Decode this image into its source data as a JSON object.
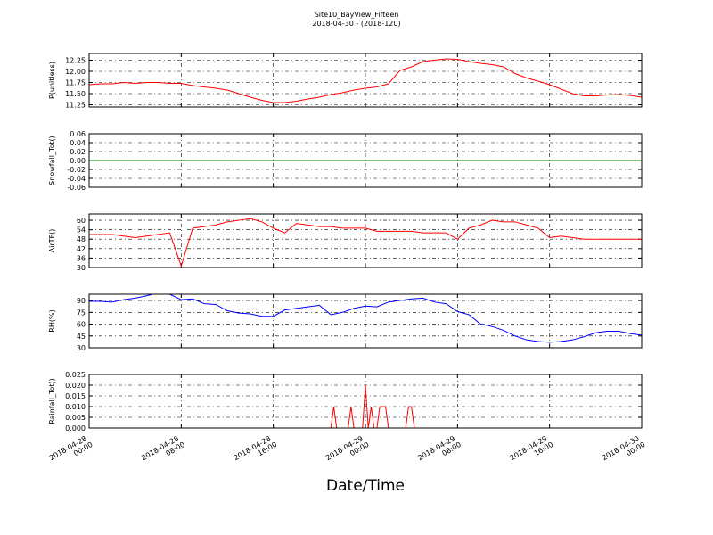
{
  "chart_data": [
    {
      "type": "line",
      "title": "Site10_BayView_Fifteen",
      "subtitle": "2018-04-30 - (2018-120)",
      "ylabel": "P(unitless)",
      "color": "#ff0000",
      "x": [
        "2018-04-28 00:00",
        "2018-04-28 01:00",
        "2018-04-28 02:00",
        "2018-04-28 03:00",
        "2018-04-28 04:00",
        "2018-04-28 05:00",
        "2018-04-28 06:00",
        "2018-04-28 07:00",
        "2018-04-28 08:00",
        "2018-04-28 09:00",
        "2018-04-28 10:00",
        "2018-04-28 11:00",
        "2018-04-28 12:00",
        "2018-04-28 13:00",
        "2018-04-28 14:00",
        "2018-04-28 15:00",
        "2018-04-28 16:00",
        "2018-04-28 17:00",
        "2018-04-28 18:00",
        "2018-04-28 19:00",
        "2018-04-28 20:00",
        "2018-04-28 21:00",
        "2018-04-28 22:00",
        "2018-04-28 23:00",
        "2018-04-29 00:00",
        "2018-04-29 01:00",
        "2018-04-29 02:00",
        "2018-04-29 03:00",
        "2018-04-29 04:00",
        "2018-04-29 05:00",
        "2018-04-29 06:00",
        "2018-04-29 07:00",
        "2018-04-29 08:00",
        "2018-04-29 09:00",
        "2018-04-29 10:00",
        "2018-04-29 11:00",
        "2018-04-29 12:00",
        "2018-04-29 13:00",
        "2018-04-29 14:00",
        "2018-04-29 15:00",
        "2018-04-29 16:00",
        "2018-04-29 17:00",
        "2018-04-29 18:00",
        "2018-04-29 19:00",
        "2018-04-29 20:00",
        "2018-04-29 21:00",
        "2018-04-29 22:00",
        "2018-04-29 23:00",
        "2018-04-30 00:00"
      ],
      "values": [
        11.7,
        11.72,
        11.72,
        11.75,
        11.73,
        11.75,
        11.75,
        11.73,
        11.73,
        11.68,
        11.65,
        11.62,
        11.58,
        11.5,
        11.42,
        11.35,
        11.3,
        11.3,
        11.33,
        11.38,
        11.42,
        11.48,
        11.52,
        11.58,
        11.62,
        11.65,
        11.72,
        12.02,
        12.1,
        12.22,
        12.25,
        12.28,
        12.27,
        12.22,
        12.18,
        12.15,
        12.1,
        11.95,
        11.85,
        11.78,
        11.7,
        11.6,
        11.5,
        11.45,
        11.45,
        11.47,
        11.48,
        11.46,
        11.42
      ],
      "xlim": [
        "2018-04-28 00:00",
        "2018-04-30 00:00"
      ],
      "xticks": [
        "2018-04-28 00:00",
        "2018-04-28 08:00",
        "2018-04-28 16:00",
        "2018-04-29 00:00",
        "2018-04-29 08:00",
        "2018-04-29 16:00",
        "2018-04-30 00:00"
      ],
      "ylim": [
        11.2,
        12.4
      ],
      "yticks": [
        11.25,
        {
          "value": 11.5,
          "label": "11.50"
        },
        11.75,
        {
          "value": 12,
          "label": "12.00"
        },
        12.25
      ],
      "grid": true
    },
    {
      "type": "line",
      "ylabel": "Snowfall_Tot()",
      "color": "#008000",
      "x": [
        "2018-04-28 00:00",
        "2018-04-28 01:00",
        "2018-04-28 02:00",
        "2018-04-28 03:00",
        "2018-04-28 04:00",
        "2018-04-28 05:00",
        "2018-04-28 06:00",
        "2018-04-28 07:00",
        "2018-04-28 08:00",
        "2018-04-28 09:00",
        "2018-04-28 10:00",
        "2018-04-28 11:00",
        "2018-04-28 12:00",
        "2018-04-28 13:00",
        "2018-04-28 14:00",
        "2018-04-28 15:00",
        "2018-04-28 16:00",
        "2018-04-28 17:00",
        "2018-04-28 18:00",
        "2018-04-28 19:00",
        "2018-04-28 20:00",
        "2018-04-28 21:00",
        "2018-04-28 22:00",
        "2018-04-28 23:00",
        "2018-04-29 00:00",
        "2018-04-29 01:00",
        "2018-04-29 02:00",
        "2018-04-29 03:00",
        "2018-04-29 04:00",
        "2018-04-29 05:00",
        "2018-04-29 06:00",
        "2018-04-29 07:00",
        "2018-04-29 08:00",
        "2018-04-29 09:00",
        "2018-04-29 10:00",
        "2018-04-29 11:00",
        "2018-04-29 12:00",
        "2018-04-29 13:00",
        "2018-04-29 14:00",
        "2018-04-29 15:00",
        "2018-04-29 16:00",
        "2018-04-29 17:00",
        "2018-04-29 18:00",
        "2018-04-29 19:00",
        "2018-04-29 20:00",
        "2018-04-29 21:00",
        "2018-04-29 22:00",
        "2018-04-29 23:00",
        "2018-04-30 00:00"
      ],
      "values": [
        0,
        0,
        0,
        0,
        0,
        0,
        0,
        0,
        0,
        0,
        0,
        0,
        0,
        0,
        0,
        0,
        0,
        0,
        0,
        0,
        0,
        0,
        0,
        0,
        0,
        0,
        0,
        0,
        0,
        0,
        0,
        0,
        0,
        0,
        0,
        0,
        0,
        0,
        0,
        0,
        0,
        0,
        0,
        0,
        0,
        0,
        0,
        0,
        0
      ],
      "xlim": [
        "2018-04-28 00:00",
        "2018-04-30 00:00"
      ],
      "xticks": [
        "2018-04-28 00:00",
        "2018-04-28 08:00",
        "2018-04-28 16:00",
        "2018-04-29 00:00",
        "2018-04-29 08:00",
        "2018-04-29 16:00",
        "2018-04-30 00:00"
      ],
      "ylim": [
        -0.06,
        0.06
      ],
      "yticks": [
        -0.06,
        -0.04,
        -0.02,
        {
          "value": 0,
          "label": "0.00"
        },
        0.02,
        0.04,
        0.06
      ],
      "grid": true
    },
    {
      "type": "line",
      "ylabel": "AirTF()",
      "color": "#ff0000",
      "x": [
        "2018-04-28 00:00",
        "2018-04-28 01:00",
        "2018-04-28 02:00",
        "2018-04-28 03:00",
        "2018-04-28 04:00",
        "2018-04-28 05:00",
        "2018-04-28 06:00",
        "2018-04-28 07:00",
        "2018-04-28 08:00",
        "2018-04-28 09:00",
        "2018-04-28 10:00",
        "2018-04-28 11:00",
        "2018-04-28 12:00",
        "2018-04-28 13:00",
        "2018-04-28 14:00",
        "2018-04-28 15:00",
        "2018-04-28 16:00",
        "2018-04-28 17:00",
        "2018-04-28 18:00",
        "2018-04-28 19:00",
        "2018-04-28 20:00",
        "2018-04-28 21:00",
        "2018-04-28 22:00",
        "2018-04-28 23:00",
        "2018-04-29 00:00",
        "2018-04-29 01:00",
        "2018-04-29 02:00",
        "2018-04-29 03:00",
        "2018-04-29 04:00",
        "2018-04-29 05:00",
        "2018-04-29 06:00",
        "2018-04-29 07:00",
        "2018-04-29 08:00",
        "2018-04-29 09:00",
        "2018-04-29 10:00",
        "2018-04-29 11:00",
        "2018-04-29 12:00",
        "2018-04-29 13:00",
        "2018-04-29 14:00",
        "2018-04-29 15:00",
        "2018-04-29 16:00",
        "2018-04-29 17:00",
        "2018-04-29 18:00",
        "2018-04-29 19:00",
        "2018-04-29 20:00",
        "2018-04-29 21:00",
        "2018-04-29 22:00",
        "2018-04-29 23:00",
        "2018-04-30 00:00"
      ],
      "values": [
        51,
        51,
        51,
        50,
        49,
        50,
        51,
        52,
        31,
        55,
        56,
        57,
        59,
        60,
        61,
        59,
        55,
        52,
        58,
        57,
        56,
        56,
        55,
        55,
        55,
        53,
        53,
        53,
        53,
        52,
        52,
        52,
        48,
        55,
        57,
        60,
        59,
        59,
        57,
        55,
        49,
        50,
        49,
        48,
        48,
        48,
        48,
        48,
        48
      ],
      "xlim": [
        "2018-04-28 00:00",
        "2018-04-30 00:00"
      ],
      "xticks": [
        "2018-04-28 00:00",
        "2018-04-28 08:00",
        "2018-04-28 16:00",
        "2018-04-29 00:00",
        "2018-04-29 08:00",
        "2018-04-29 16:00",
        "2018-04-30 00:00"
      ],
      "ylim": [
        30,
        64
      ],
      "yticks": [
        30,
        36,
        42,
        48,
        54,
        60
      ],
      "grid": true
    },
    {
      "type": "line",
      "ylabel": "RH(%)",
      "color": "#0000ff",
      "x": [
        "2018-04-28 00:00",
        "2018-04-28 01:00",
        "2018-04-28 02:00",
        "2018-04-28 03:00",
        "2018-04-28 04:00",
        "2018-04-28 05:00",
        "2018-04-28 06:00",
        "2018-04-28 07:00",
        "2018-04-28 08:00",
        "2018-04-28 09:00",
        "2018-04-28 10:00",
        "2018-04-28 11:00",
        "2018-04-28 12:00",
        "2018-04-28 13:00",
        "2018-04-28 14:00",
        "2018-04-28 15:00",
        "2018-04-28 16:00",
        "2018-04-28 17:00",
        "2018-04-28 18:00",
        "2018-04-28 19:00",
        "2018-04-28 20:00",
        "2018-04-28 21:00",
        "2018-04-28 22:00",
        "2018-04-28 23:00",
        "2018-04-29 00:00",
        "2018-04-29 01:00",
        "2018-04-29 02:00",
        "2018-04-29 03:00",
        "2018-04-29 04:00",
        "2018-04-29 05:00",
        "2018-04-29 06:00",
        "2018-04-29 07:00",
        "2018-04-29 08:00",
        "2018-04-29 09:00",
        "2018-04-29 10:00",
        "2018-04-29 11:00",
        "2018-04-29 12:00",
        "2018-04-29 13:00",
        "2018-04-29 14:00",
        "2018-04-29 15:00",
        "2018-04-29 16:00",
        "2018-04-29 17:00",
        "2018-04-29 18:00",
        "2018-04-29 19:00",
        "2018-04-29 20:00",
        "2018-04-29 21:00",
        "2018-04-29 22:00",
        "2018-04-29 23:00",
        "2018-04-30 00:00"
      ],
      "values": [
        89,
        89,
        88,
        91,
        93,
        96,
        100,
        98,
        91,
        92,
        86,
        85,
        77,
        74,
        73,
        70,
        70,
        78,
        80,
        82,
        84,
        72,
        75,
        80,
        83,
        82,
        88,
        90,
        92,
        93,
        88,
        86,
        76,
        72,
        60,
        57,
        52,
        45,
        40,
        38,
        37,
        38,
        40,
        44,
        49,
        51,
        51,
        48,
        46
      ],
      "xlim": [
        "2018-04-28 00:00",
        "2018-04-30 00:00"
      ],
      "xticks": [
        "2018-04-28 00:00",
        "2018-04-28 08:00",
        "2018-04-28 16:00",
        "2018-04-29 00:00",
        "2018-04-29 08:00",
        "2018-04-29 16:00",
        "2018-04-30 00:00"
      ],
      "ylim": [
        30,
        98
      ],
      "yticks": [
        30,
        45,
        60,
        75,
        90
      ],
      "grid": true
    },
    {
      "type": "line",
      "ylabel": "Rainfall_Tot()",
      "xlabel": "Date/Time",
      "color": "#ff0000",
      "x": [
        "2018-04-28 00:00",
        "2018-04-28 21:00",
        "2018-04-28 21:15",
        "2018-04-28 21:30",
        "2018-04-28 22:30",
        "2018-04-28 22:45",
        "2018-04-28 23:00",
        "2018-04-28 23:45",
        "2018-04-29 00:00",
        "2018-04-29 00:15",
        "2018-04-29 00:30",
        "2018-04-29 00:45",
        "2018-04-29 01:00",
        "2018-04-29 01:15",
        "2018-04-29 01:45",
        "2018-04-29 02:00",
        "2018-04-29 03:30",
        "2018-04-29 03:45",
        "2018-04-29 04:00",
        "2018-04-29 04:15",
        "2018-04-30 00:00"
      ],
      "values": [
        0,
        0,
        0.01,
        0,
        0,
        0.01,
        0,
        0,
        0.02,
        0,
        0.01,
        0,
        0,
        0.01,
        0.01,
        0,
        0,
        0.01,
        0.01,
        0,
        0
      ],
      "xlim": [
        "2018-04-28 00:00",
        "2018-04-30 00:00"
      ],
      "xticks": [
        "2018-04-28 00:00",
        "2018-04-28 08:00",
        "2018-04-28 16:00",
        "2018-04-29 00:00",
        "2018-04-29 08:00",
        "2018-04-29 16:00",
        "2018-04-30 00:00"
      ],
      "ylim": [
        0,
        0.025
      ],
      "yticks": [
        {
          "value": 0,
          "label": "0.000"
        },
        0.005,
        {
          "value": 0.01,
          "label": "0.010"
        },
        0.015,
        {
          "value": 0.02,
          "label": "0.020"
        },
        0.025
      ],
      "grid": true
    }
  ]
}
